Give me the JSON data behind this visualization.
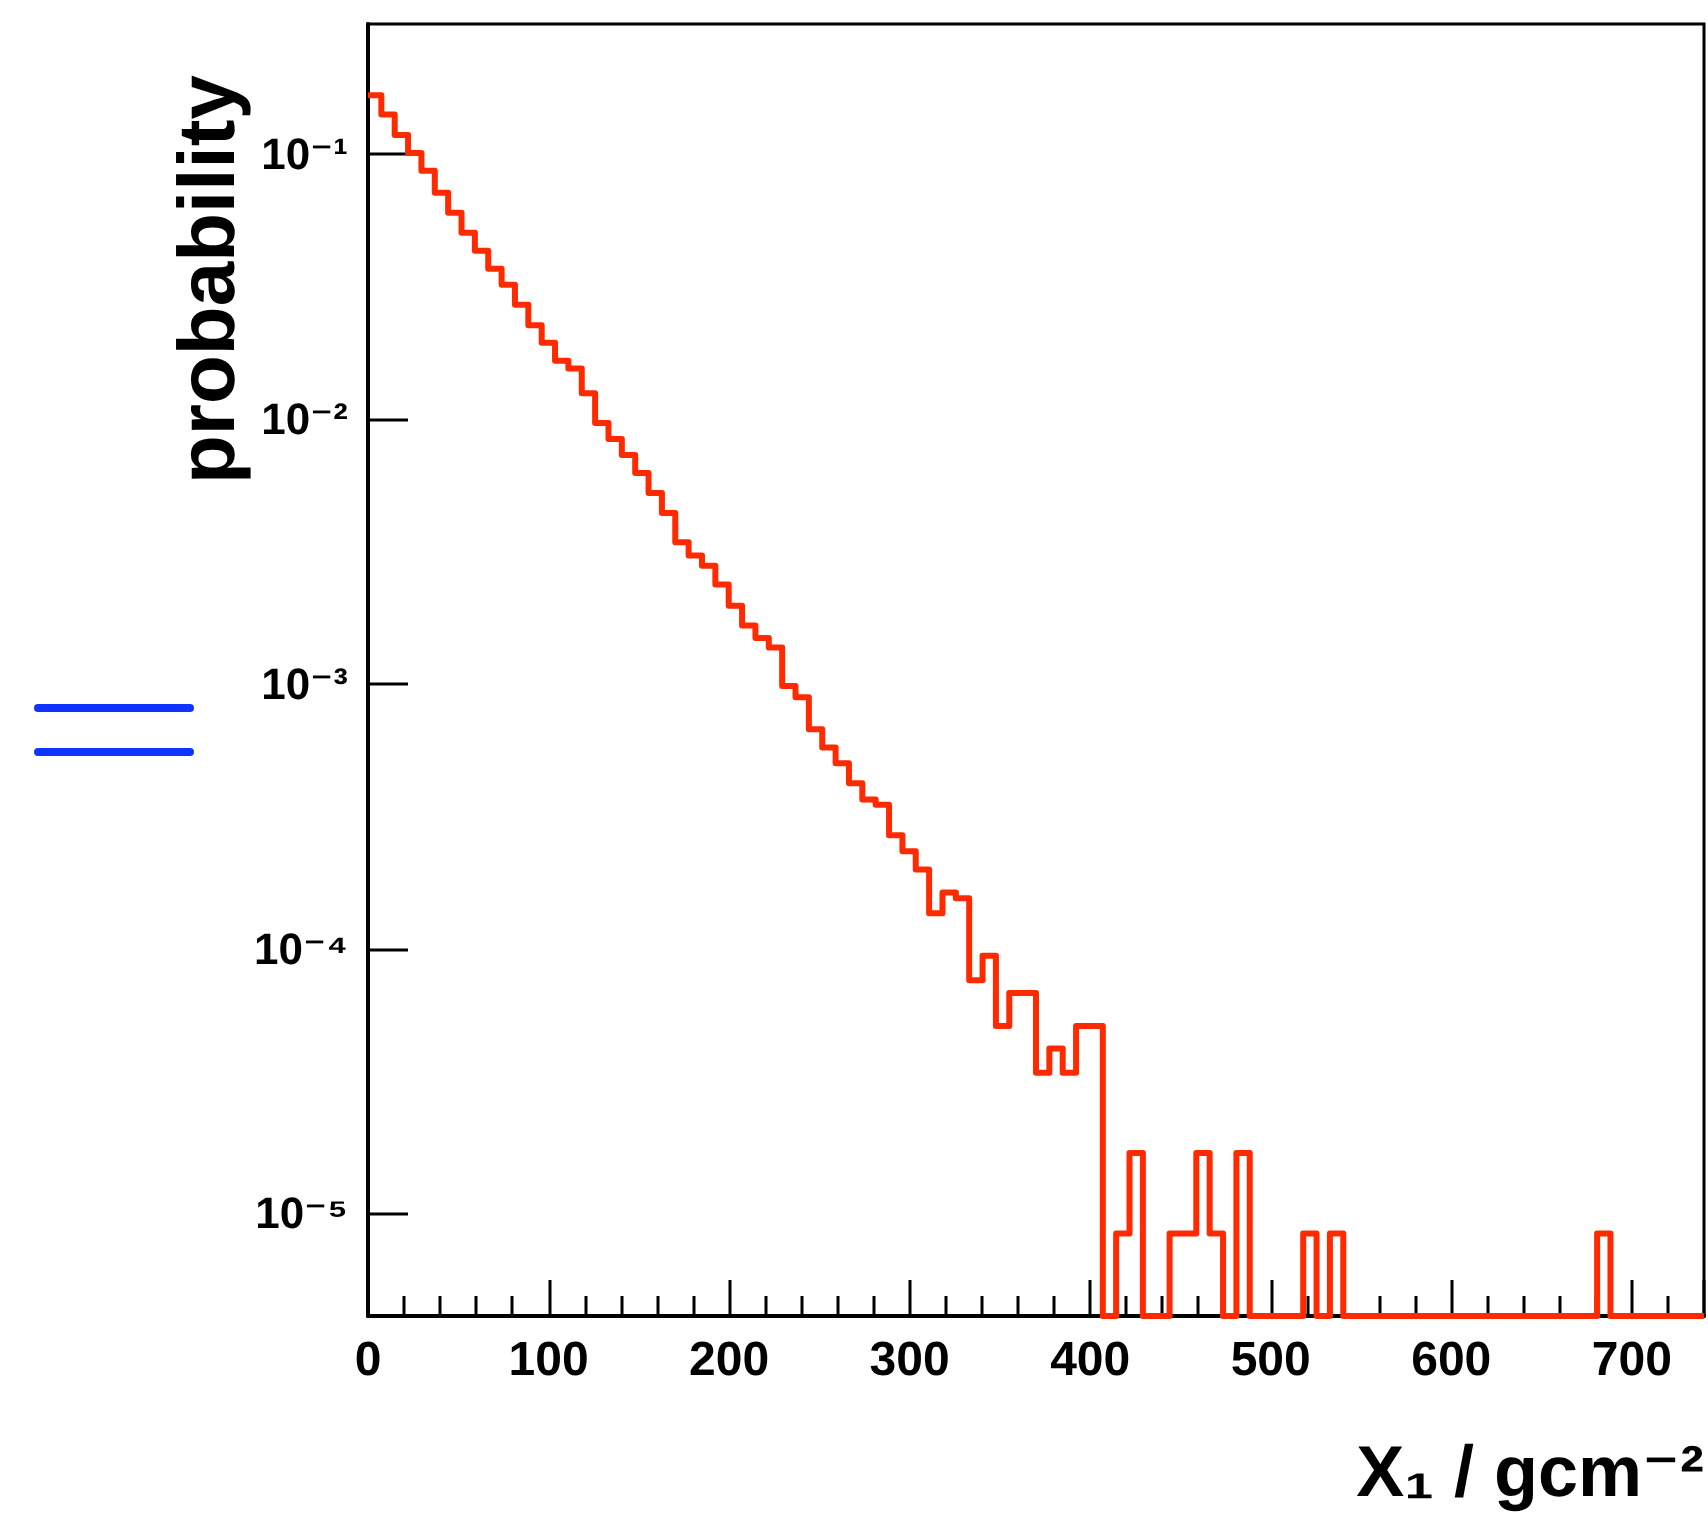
{
  "chart_data": {
    "type": "histogram",
    "xlabel": "X₁ / gcm⁻²",
    "ylabel": "probability",
    "color": "#ff2a00",
    "log": "y",
    "line_style": "solid",
    "bins": [
      0,
      7.4,
      14.8,
      22.2,
      29.6,
      37,
      44.4,
      51.8,
      59.2,
      66.6,
      74,
      81.4,
      88.8,
      96.2,
      103.6,
      111,
      118.4,
      125.8,
      133.2,
      140.6,
      148,
      155.4,
      162.8,
      170.2,
      177.6,
      185,
      192.4,
      199.8,
      207.2,
      214.6,
      222,
      229.4,
      236.8,
      244.2,
      251.6,
      259,
      266.4,
      273.8,
      281.2,
      288.6,
      296,
      303.4,
      310.8,
      318.2,
      325.6,
      333,
      340.4,
      347.8,
      355.2,
      362.6,
      370,
      377.4,
      384.8,
      392.2,
      399.6,
      407,
      414.4,
      421.8,
      429.2,
      436.6,
      444,
      451.4,
      458.8,
      466.2,
      473.6,
      481,
      488.4,
      495.8,
      503.2,
      510.6,
      518,
      525.4,
      532.8,
      540.2,
      547.6,
      555,
      562.4,
      569.8,
      577.2,
      584.6,
      592,
      599.4,
      606.8,
      614.2,
      621.6,
      629,
      636.4,
      643.8,
      651.2,
      658.6,
      666,
      673.4,
      680.8,
      688.2,
      695.6,
      703,
      710.4,
      717.8,
      725.2,
      732.6,
      740
    ],
    "values": [
      0.167,
      0.141,
      0.118,
      0.101,
      0.0865,
      0.0714,
      0.0601,
      0.0505,
      0.0432,
      0.0369,
      0.0321,
      0.027,
      0.0226,
      0.0194,
      0.0166,
      0.0155,
      0.0125,
      0.00966,
      0.0084,
      0.00731,
      0.00625,
      0.00525,
      0.00441,
      0.00342,
      0.00305,
      0.00279,
      0.00237,
      0.00197,
      0.00166,
      0.00149,
      0.00137,
      0.00098,
      0.00089,
      0.000673,
      0.000575,
      0.000501,
      0.000421,
      0.000366,
      0.000349,
      0.000268,
      0.000233,
      0.000199,
      0.000136,
      0.000163,
      0.000155,
      7.6e-05,
      9.4e-05,
      5.1e-05,
      6.8e-05,
      6.8e-05,
      3.4e-05,
      4.2e-05,
      3.4e-05,
      5.1e-05,
      5.1e-05,
      null,
      8.4e-06,
      1.69e-05,
      null,
      null,
      8.4e-06,
      8.4e-06,
      1.69e-05,
      8.4e-06,
      null,
      1.69e-05,
      null,
      null,
      null,
      null,
      8.4e-06,
      null,
      8.4e-06,
      null,
      null,
      null,
      null,
      null,
      null,
      null,
      null,
      null,
      null,
      null,
      null,
      null,
      null,
      null,
      null,
      null,
      null,
      null,
      8.4e-06,
      null,
      null,
      null,
      null,
      null,
      null,
      null
    ],
    "xlim": [
      0,
      740
    ],
    "xticks": [
      0,
      100,
      200,
      300,
      400,
      500,
      600,
      700
    ],
    "ylim": [
      4.1e-06,
      0.31
    ],
    "yticks": [
      {
        "value": 1e-05,
        "label": "10⁻⁵"
      },
      {
        "value": 0.0001,
        "label": "10⁻⁴"
      },
      {
        "value": 0.001,
        "label": "10⁻³"
      },
      {
        "value": 0.01,
        "label": "10⁻²"
      },
      {
        "value": 0.1,
        "label": "10⁻¹"
      }
    ]
  }
}
